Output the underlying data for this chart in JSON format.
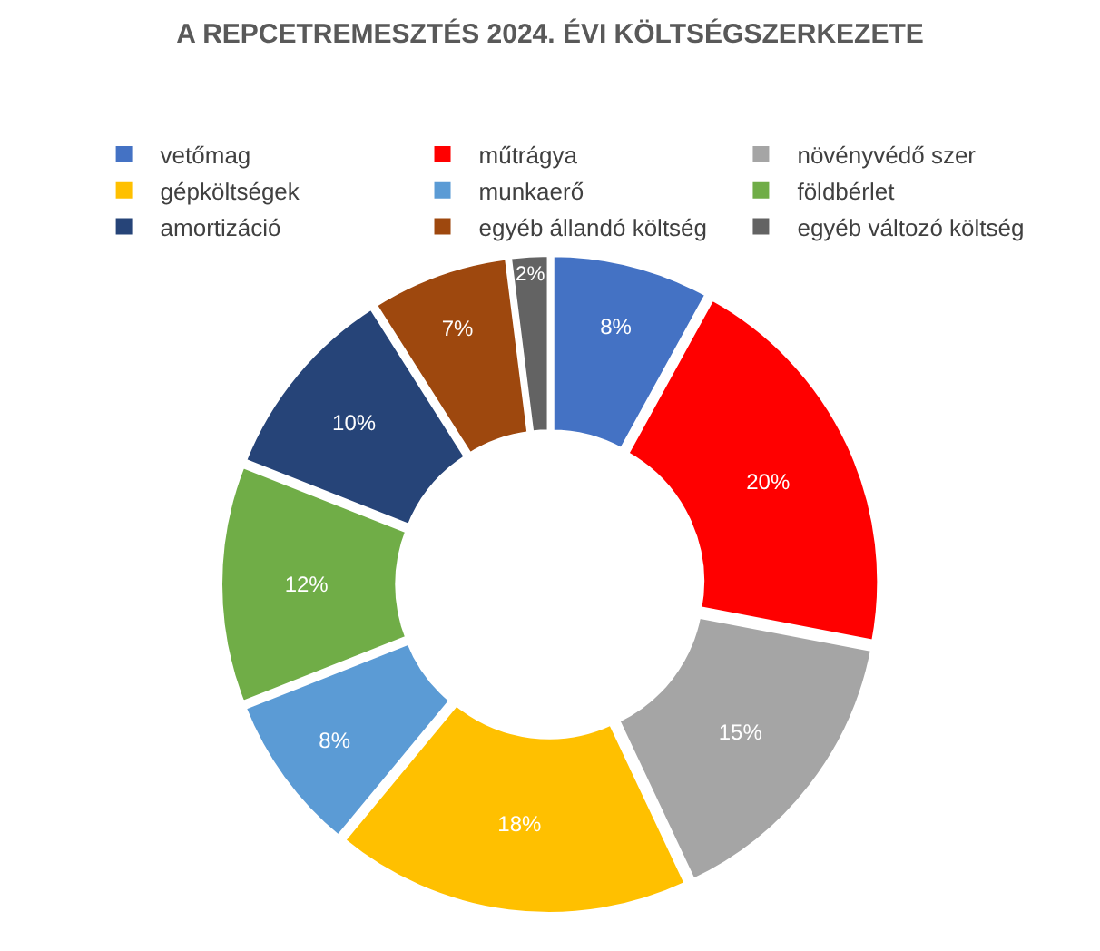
{
  "chart_data": {
    "type": "donut",
    "title": "A REPCETREMESZTÉS 2024. ÉVI KÖLTSÉGSZERKEZETE",
    "categories": [
      "vetőmag",
      "műtrágya",
      "növényvédő szer",
      "gépköltségek",
      "munkaerő",
      "földbérlet",
      "amortizáció",
      "egyéb állandó költség",
      "egyéb változó költség"
    ],
    "values": [
      8,
      20,
      15,
      18,
      8,
      12,
      10,
      7,
      2
    ],
    "value_labels": [
      "8%",
      "20%",
      "15%",
      "18%",
      "8%",
      "12%",
      "10%",
      "7%",
      "2%"
    ],
    "colors": [
      "#4472c4",
      "#ff0000",
      "#a5a5a5",
      "#ffc000",
      "#5b9bd5",
      "#70ad47",
      "#264478",
      "#9e480e",
      "#636363"
    ],
    "legend": "top"
  }
}
